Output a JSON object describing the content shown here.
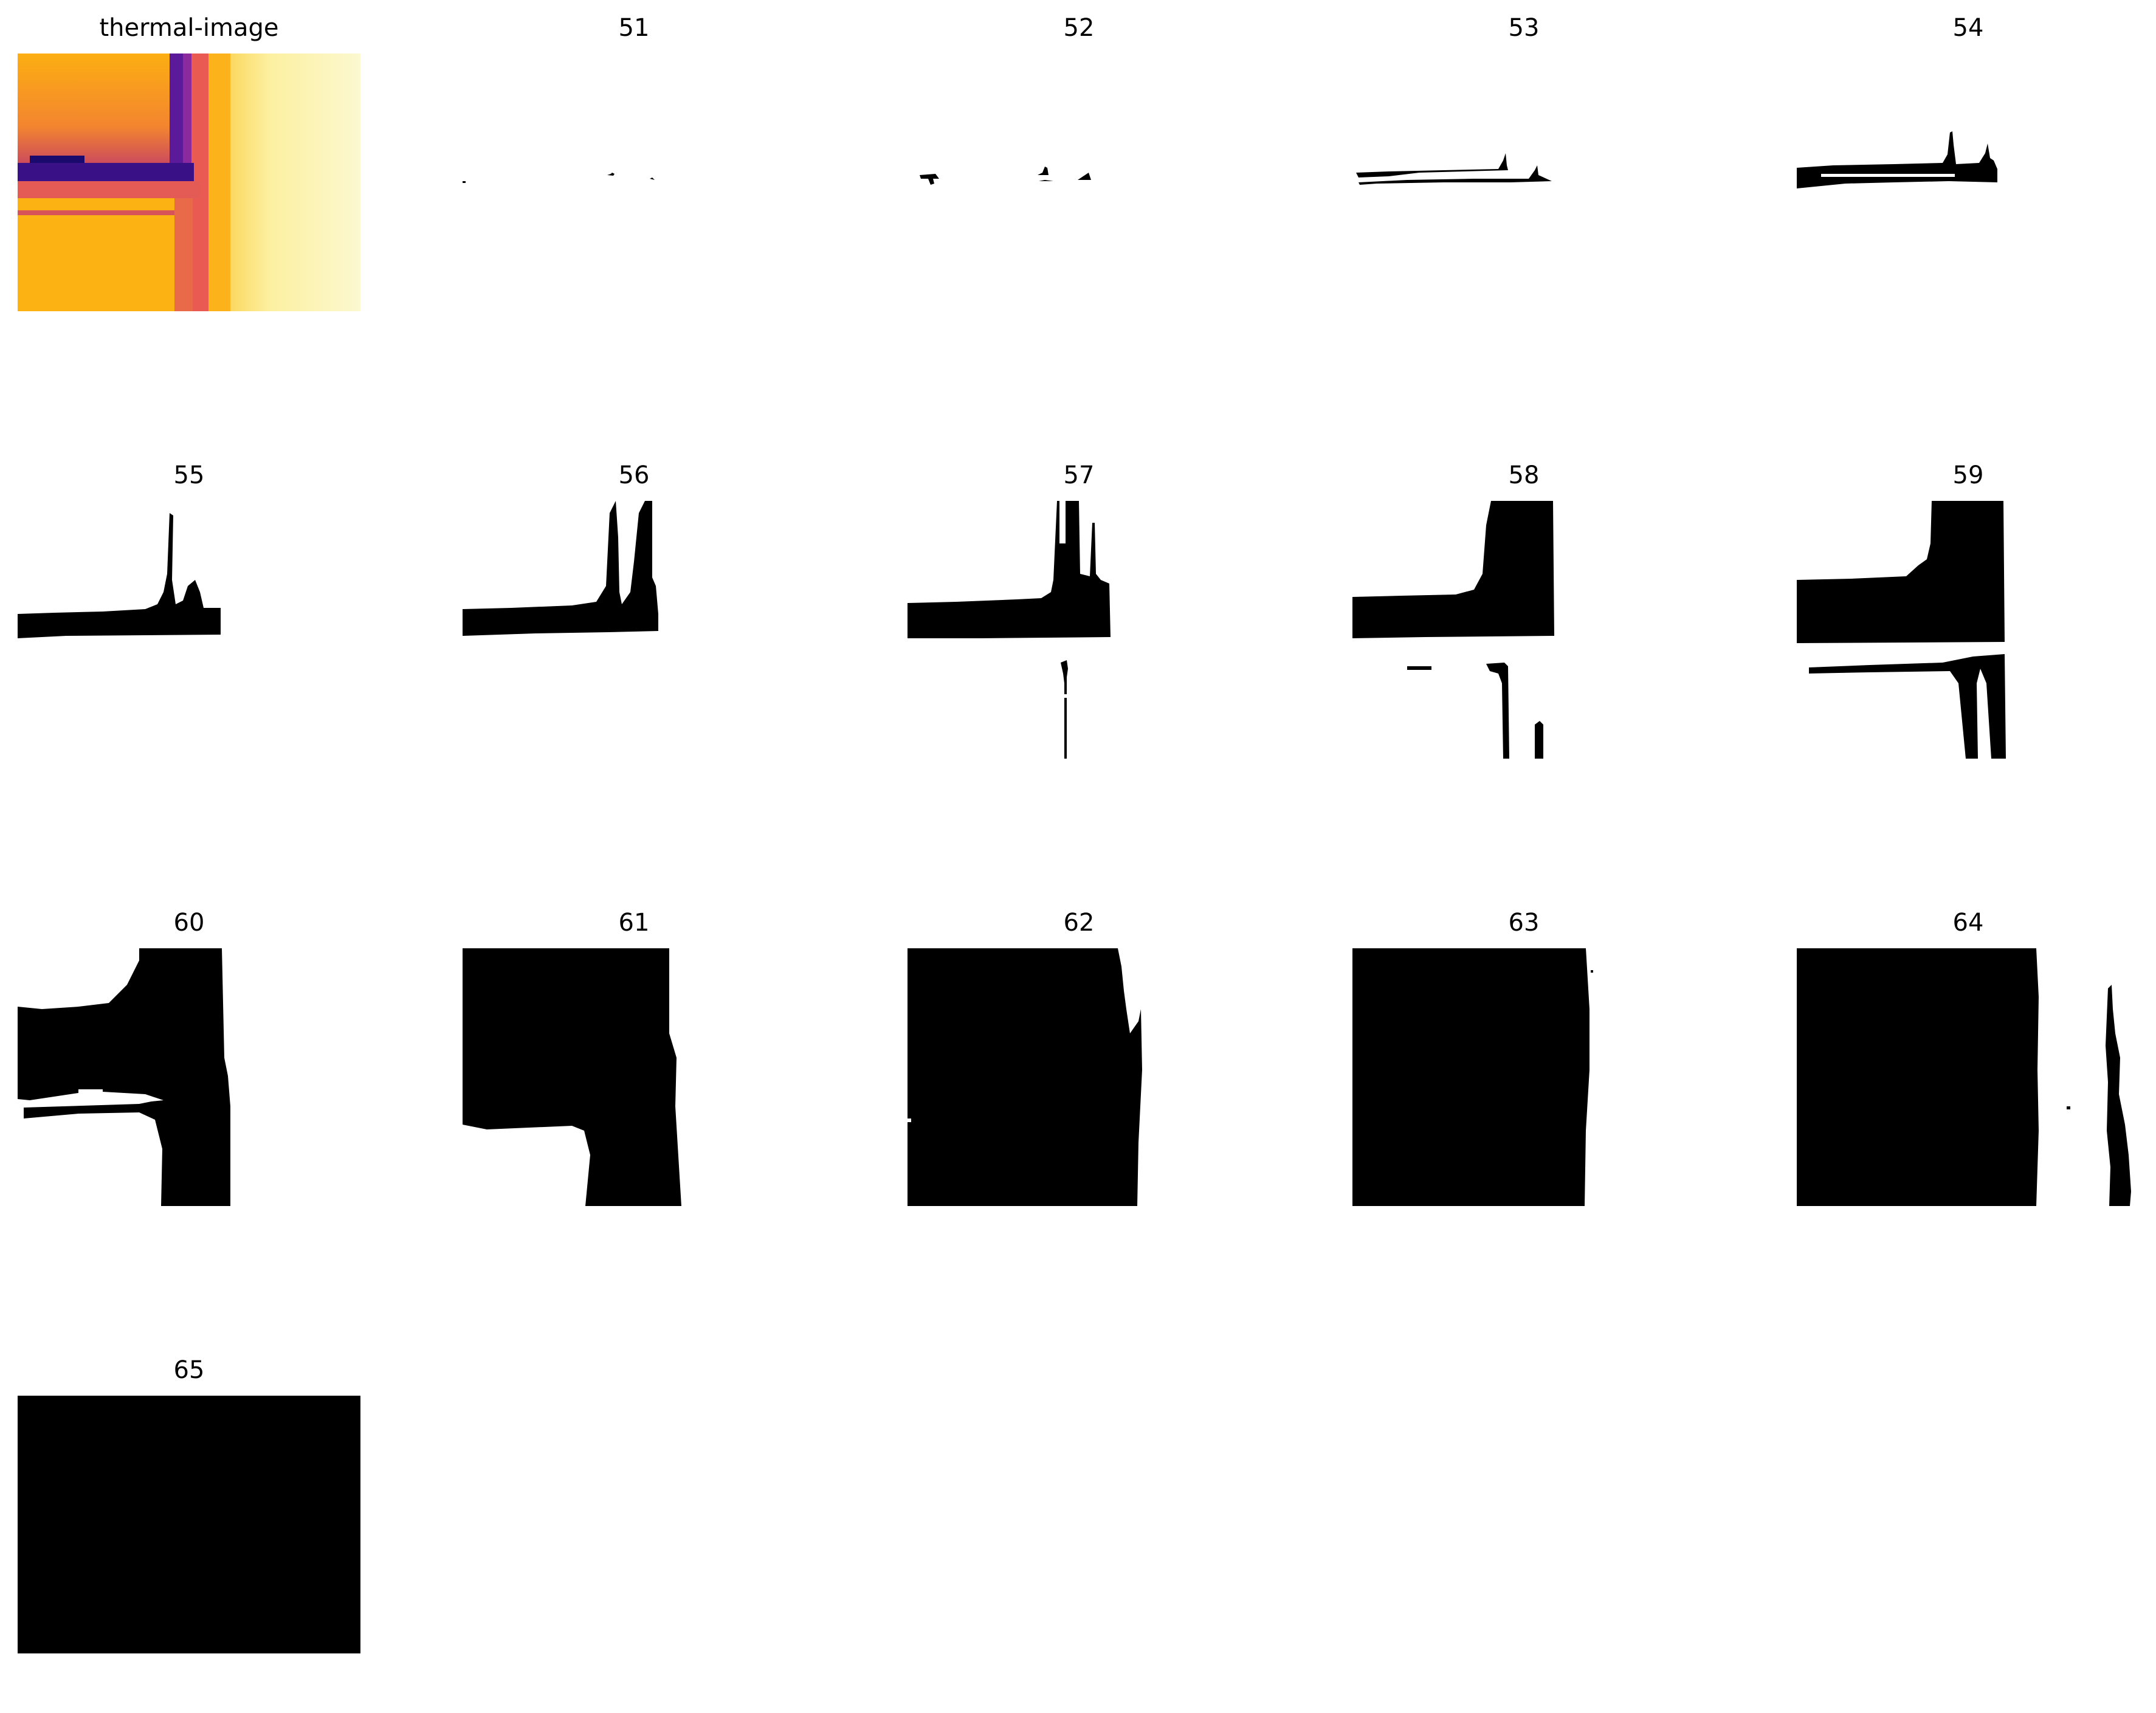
{
  "panels": [
    {
      "title": "thermal-image"
    },
    {
      "title": "51"
    },
    {
      "title": "52"
    },
    {
      "title": "53"
    },
    {
      "title": "54"
    },
    {
      "title": "55"
    },
    {
      "title": "56"
    },
    {
      "title": "57"
    },
    {
      "title": "58"
    },
    {
      "title": "59"
    },
    {
      "title": "60"
    },
    {
      "title": "61"
    },
    {
      "title": "62"
    },
    {
      "title": "63"
    },
    {
      "title": "64"
    },
    {
      "title": "65"
    }
  ],
  "colors": {
    "mask": "#000000",
    "background": "#ffffff",
    "thermal_palette": [
      "#1a0a6e",
      "#6a1fa6",
      "#c0396b",
      "#f07a3a",
      "#fcae12",
      "#fcd860",
      "#fcf4c2"
    ]
  }
}
